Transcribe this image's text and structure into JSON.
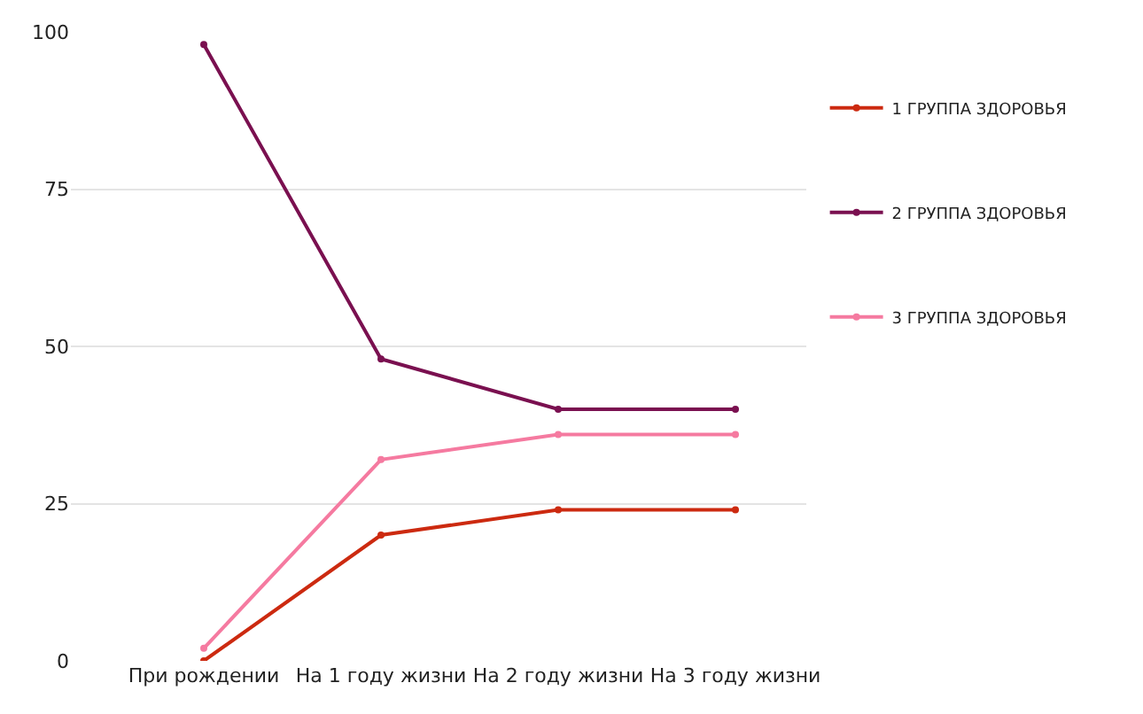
{
  "chart_data": {
    "type": "line",
    "categories": [
      "При рождении",
      "На 1 году жизни",
      "На 2 году жизни",
      "На 3 году жизни"
    ],
    "series": [
      {
        "name": "1 ГРУППА ЗДОРОВЬЯ",
        "color": "#cc2a10",
        "values": [
          0,
          20,
          24,
          24
        ]
      },
      {
        "name": "2 ГРУППА ЗДОРОВЬЯ",
        "color": "#7a1050",
        "values": [
          98,
          48,
          40,
          40
        ]
      },
      {
        "name": "3 ГРУППА ЗДОРОВЬЯ",
        "color": "#f57aa0",
        "values": [
          2,
          32,
          36,
          36
        ]
      }
    ],
    "ylim": [
      0,
      100
    ],
    "yticks": [
      0,
      25,
      50,
      75,
      100
    ],
    "grid": "y",
    "legend": "right",
    "marker": "circle",
    "line_style": "solid"
  }
}
